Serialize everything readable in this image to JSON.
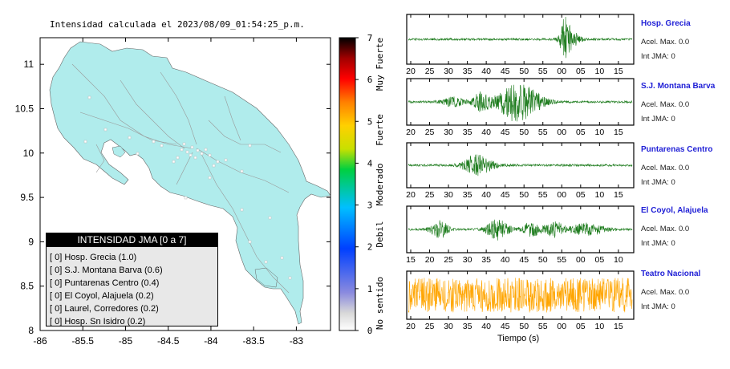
{
  "title": "Intensidad calculada el 2023/08/09_01:54:25_p.m.",
  "map": {
    "x_ticks": [
      "-86",
      "-85.5",
      "-85",
      "-84.5",
      "-84",
      "-83.5",
      "-83"
    ],
    "y_ticks": [
      "11",
      "10.5",
      "10",
      "9.5",
      "9",
      "8.5",
      "8"
    ],
    "legend_title": "INTENSIDAD JMA [0 a 7]",
    "legend_items": [
      {
        "level": "[ 0]",
        "label": "Hosp. Grecia (1.0)"
      },
      {
        "level": "[ 0]",
        "label": "S.J. Montana Barva (0.6)"
      },
      {
        "level": "[ 0]",
        "label": "Puntarenas Centro (0.4)"
      },
      {
        "level": "[ 0]",
        "label": "El Coyol, Alajuela (0.2)"
      },
      {
        "level": "[ 0]",
        "label": "Laurel, Corredores (0.2)"
      },
      {
        "level": "[ 0]",
        "label": "Hosp. Sn Isidro (0.2)"
      }
    ]
  },
  "colorbar": {
    "ticks": [
      "0",
      "1",
      "2",
      "3",
      "4",
      "5",
      "6",
      "7"
    ],
    "category_labels": [
      "No sentido",
      "Debil",
      "Moderado",
      "Fuerte",
      "Muy Fuerte"
    ]
  },
  "stations": [
    {
      "name": "Hosp. Grecia",
      "accel": "Acel. Max. 0.0",
      "int": "Int JMA: 0",
      "color": "#1a7a1a",
      "ticks": [
        "20",
        "25",
        "30",
        "35",
        "40",
        "45",
        "50",
        "55",
        "00",
        "05",
        "10",
        "15"
      ]
    },
    {
      "name": "S.J. Montana Barva",
      "accel": "Acel. Max. 0.0",
      "int": "Int JMA: 0",
      "color": "#1a7a1a",
      "ticks": [
        "20",
        "25",
        "30",
        "35",
        "40",
        "45",
        "50",
        "55",
        "00",
        "05",
        "10",
        "15"
      ]
    },
    {
      "name": "Puntarenas Centro",
      "accel": "Acel. Max. 0.0",
      "int": "Int JMA: 0",
      "color": "#1a7a1a",
      "ticks": [
        "20",
        "25",
        "30",
        "35",
        "40",
        "45",
        "50",
        "55",
        "00",
        "05",
        "10",
        "15"
      ]
    },
    {
      "name": "El Coyol, Alajuela",
      "accel": "Acel. Max. 0.0",
      "int": "Int JMA: 0",
      "color": "#1a7a1a",
      "ticks": [
        "15",
        "20",
        "25",
        "30",
        "35",
        "40",
        "45",
        "50",
        "55",
        "00",
        "05",
        "10"
      ]
    },
    {
      "name": "Teatro Nacional",
      "accel": "Acel. Max. 0.0",
      "int": "Int JMA: 0",
      "color": "#ffa500",
      "ticks": [
        "20",
        "25",
        "30",
        "35",
        "40",
        "45",
        "50",
        "55",
        "00",
        "05",
        "10",
        "15"
      ]
    }
  ],
  "xlabel": "Tiempo (s)",
  "chart_data": [
    {
      "type": "map",
      "title": "Intensidad calculada el 2023/08/09_01:54:25_p.m.",
      "xlim": [
        -86,
        -82.6
      ],
      "ylim": [
        8,
        11.3
      ],
      "legend": "INTENSIDAD JMA [0 a 7]",
      "stations": [
        {
          "name": "Hosp. Grecia",
          "intensity": 1.0
        },
        {
          "name": "S.J. Montana Barva",
          "intensity": 0.6
        },
        {
          "name": "Puntarenas Centro",
          "intensity": 0.4
        },
        {
          "name": "El Coyol, Alajuela",
          "intensity": 0.2
        },
        {
          "name": "Laurel, Corredores",
          "intensity": 0.2
        },
        {
          "name": "Hosp. Sn Isidro",
          "intensity": 0.2
        }
      ]
    },
    {
      "type": "line",
      "xlabel": "Tiempo (s)",
      "series": [
        {
          "name": "Hosp. Grecia",
          "acel_max": 0.0,
          "int_jma": 0
        },
        {
          "name": "S.J. Montana Barva",
          "acel_max": 0.0,
          "int_jma": 0
        },
        {
          "name": "Puntarenas Centro",
          "acel_max": 0.0,
          "int_jma": 0
        },
        {
          "name": "El Coyol, Alajuela",
          "acel_max": 0.0,
          "int_jma": 0
        },
        {
          "name": "Teatro Nacional",
          "acel_max": 0.0,
          "int_jma": 0
        }
      ]
    }
  ]
}
